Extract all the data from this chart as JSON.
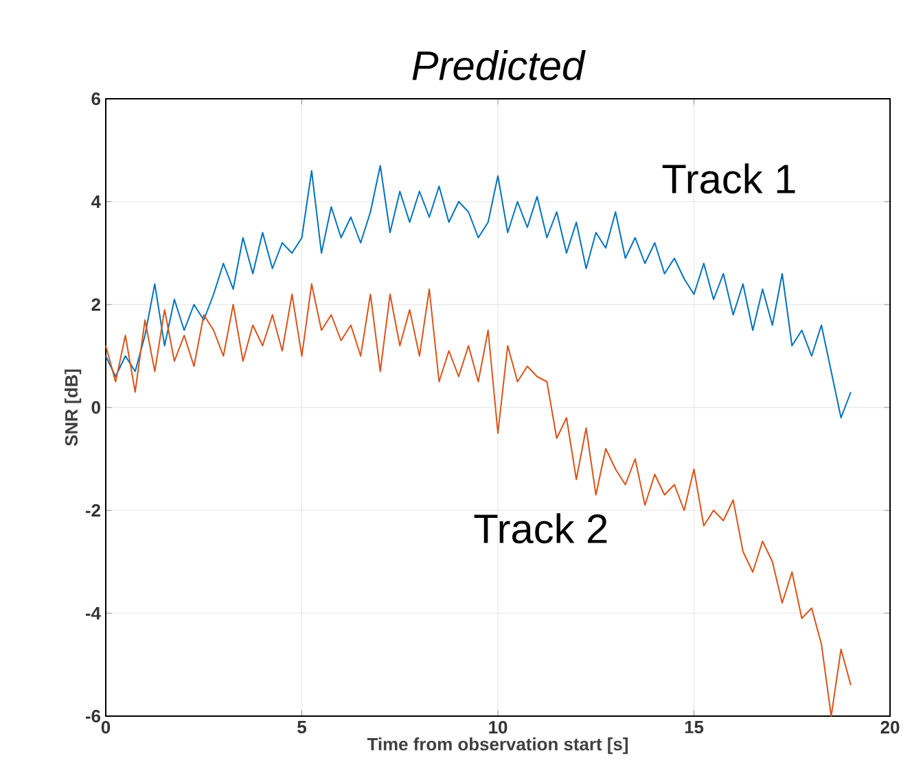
{
  "chart_data": {
    "type": "line",
    "title": "Predicted",
    "xlabel": "Time from observation start [s]",
    "ylabel": "SNR [dB]",
    "x": [
      0,
      0.25,
      0.5,
      0.75,
      1,
      1.25,
      1.5,
      1.75,
      2,
      2.25,
      2.5,
      2.75,
      3,
      3.25,
      3.5,
      3.75,
      4,
      4.25,
      4.5,
      4.75,
      5,
      5.25,
      5.5,
      5.75,
      6,
      6.25,
      6.5,
      6.75,
      7,
      7.25,
      7.5,
      7.75,
      8,
      8.25,
      8.5,
      8.75,
      9,
      9.25,
      9.5,
      9.75,
      10,
      10.25,
      10.5,
      10.75,
      11,
      11.25,
      11.5,
      11.75,
      12,
      12.25,
      12.5,
      12.75,
      13,
      13.25,
      13.5,
      13.75,
      14,
      14.25,
      14.5,
      14.75,
      15,
      15.25,
      15.5,
      15.75,
      16,
      16.25,
      16.5,
      16.75,
      17,
      17.25,
      17.5,
      17.75,
      18,
      18.25,
      18.5,
      18.75,
      19
    ],
    "series": [
      {
        "name": "Track 1",
        "color": "#0072bd",
        "values": [
          1.0,
          0.6,
          1.0,
          0.7,
          1.4,
          2.4,
          1.2,
          2.1,
          1.5,
          2.0,
          1.7,
          2.2,
          2.8,
          2.3,
          3.3,
          2.6,
          3.4,
          2.7,
          3.2,
          3.0,
          3.3,
          4.6,
          3.0,
          3.9,
          3.3,
          3.7,
          3.2,
          3.8,
          4.7,
          3.4,
          4.2,
          3.6,
          4.2,
          3.7,
          4.3,
          3.6,
          4.0,
          3.8,
          3.3,
          3.6,
          4.5,
          3.4,
          4.0,
          3.5,
          4.1,
          3.3,
          3.8,
          3.0,
          3.6,
          2.7,
          3.4,
          3.1,
          3.8,
          2.9,
          3.3,
          2.8,
          3.2,
          2.6,
          2.9,
          2.5,
          2.2,
          2.8,
          2.1,
          2.6,
          1.8,
          2.4,
          1.5,
          2.3,
          1.6,
          2.6,
          1.2,
          1.5,
          1.0,
          1.6,
          0.7,
          -0.2,
          0.3
        ]
      },
      {
        "name": "Track 2",
        "color": "#d95319",
        "values": [
          1.2,
          0.5,
          1.4,
          0.3,
          1.7,
          0.7,
          1.9,
          0.9,
          1.4,
          0.8,
          1.8,
          1.5,
          1.0,
          2.0,
          0.9,
          1.6,
          1.2,
          1.8,
          1.1,
          2.2,
          1.0,
          2.4,
          1.5,
          1.8,
          1.3,
          1.6,
          1.0,
          2.2,
          0.7,
          2.2,
          1.2,
          1.9,
          1.0,
          2.3,
          0.5,
          1.1,
          0.6,
          1.2,
          0.5,
          1.5,
          -0.5,
          1.2,
          0.5,
          0.8,
          0.6,
          0.5,
          -0.6,
          -0.2,
          -1.4,
          -0.4,
          -1.7,
          -0.8,
          -1.2,
          -1.5,
          -1.0,
          -1.9,
          -1.3,
          -1.7,
          -1.5,
          -2.0,
          -1.2,
          -2.3,
          -2.0,
          -2.2,
          -1.8,
          -2.8,
          -3.2,
          -2.6,
          -3.0,
          -3.8,
          -3.2,
          -4.1,
          -3.9,
          -4.6,
          -6.0,
          -4.7,
          -5.4
        ]
      }
    ],
    "xlim": [
      0,
      20
    ],
    "ylim": [
      -6,
      6
    ],
    "xticks": [
      0,
      5,
      10,
      15,
      20
    ],
    "yticks": [
      -6,
      -4,
      -2,
      0,
      2,
      4,
      6
    ],
    "grid": true,
    "marker": "none",
    "line_style": "solid"
  }
}
